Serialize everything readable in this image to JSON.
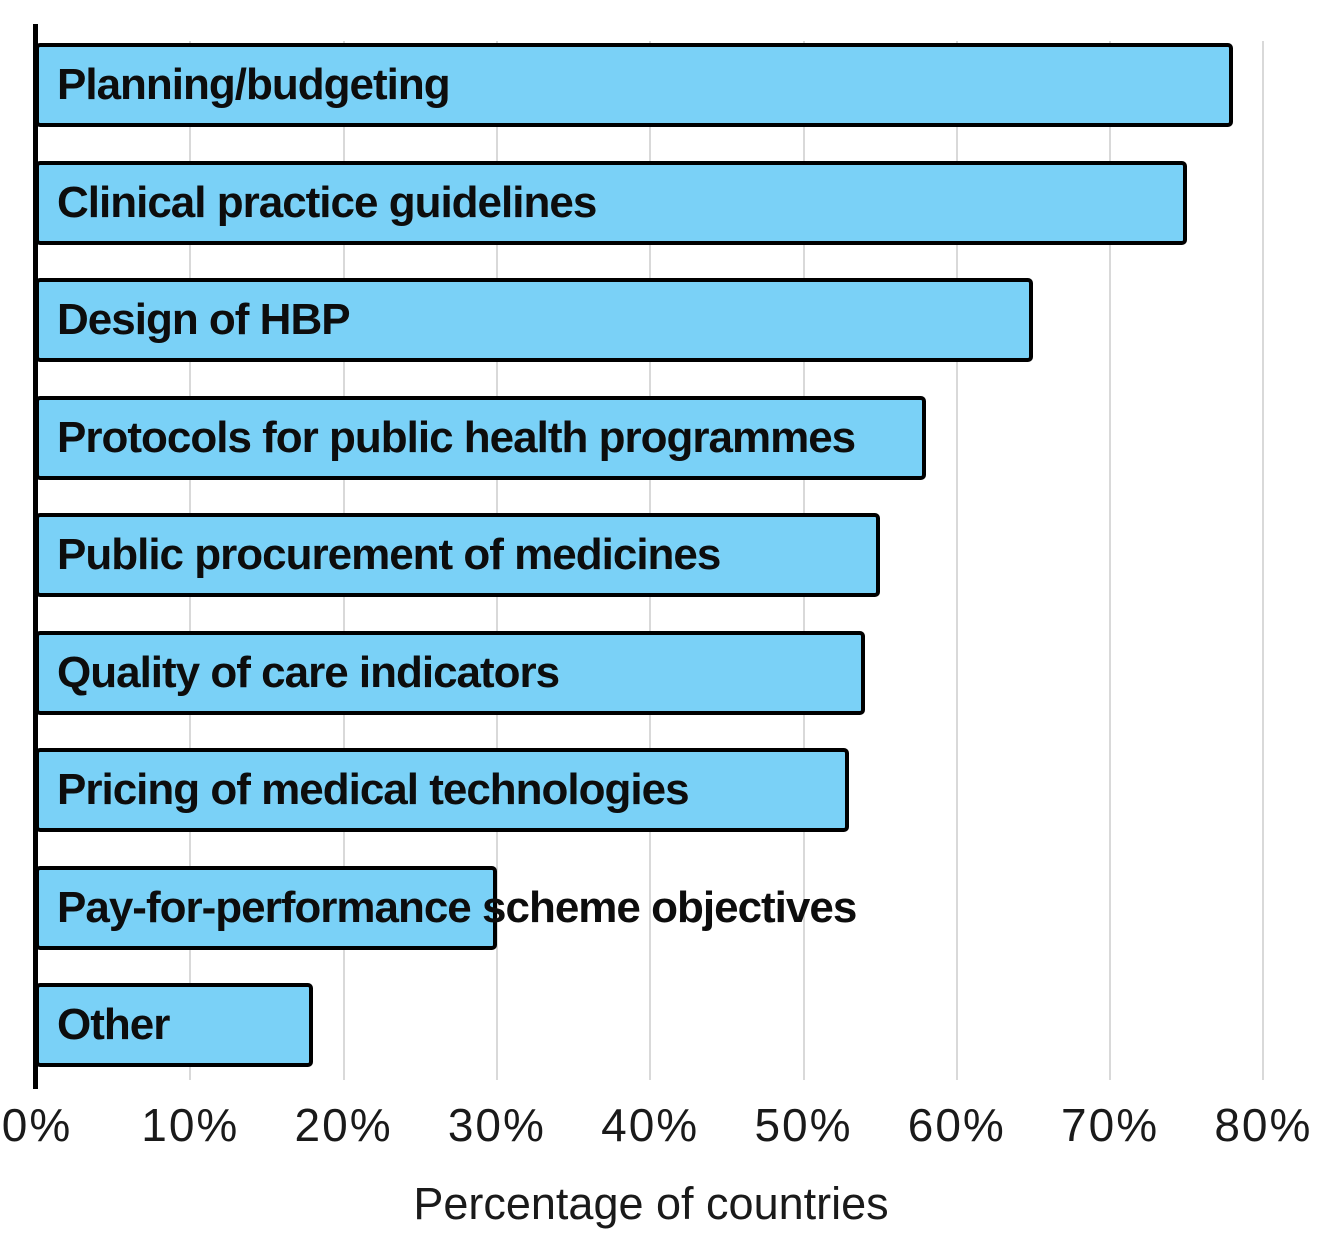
{
  "chart_data": {
    "type": "bar",
    "orientation": "horizontal",
    "title": "",
    "xlabel": "Percentage of countries",
    "ylabel": "",
    "categories": [
      "Planning/budgeting",
      "Clinical practice guidelines",
      "Design of HBP",
      "Protocols for public health programmes",
      "Public procurement of medicines",
      "Quality of care indicators",
      "Pricing of medical technologies",
      "Pay-for-performance scheme objectives",
      "Other"
    ],
    "values": [
      78,
      75,
      65,
      58,
      55,
      54,
      53,
      30,
      18
    ],
    "value_unit": "%",
    "xlim": [
      0,
      80
    ],
    "xticks": [
      "0%",
      "10%",
      "20%",
      "30%",
      "40%",
      "50%",
      "60%",
      "70%",
      "80%"
    ],
    "xtick_values": [
      0,
      10,
      20,
      30,
      40,
      50,
      60,
      70,
      80
    ],
    "grid": "vertical-gridlines",
    "legend": "none",
    "bar_label_position": "inside-start",
    "colors": {
      "bar_fill": "#7ad1f7",
      "bar_border": "#000000",
      "gridline": "#d9d9d9",
      "axis_line": "#000000",
      "text": "#1a1a1a"
    }
  }
}
